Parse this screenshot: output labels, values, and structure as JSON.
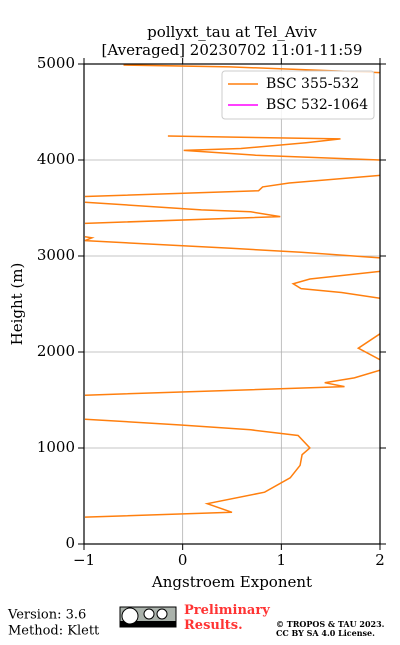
{
  "chart_data": {
    "type": "line",
    "title": "pollyxt_tau at Tel_Aviv",
    "subtitle": "[Averaged] 20230702 11:01-11:59",
    "x_label": "Angstroem Exponent",
    "y_label": "Height (m)",
    "xlim": [
      -1,
      2
    ],
    "xticks": [
      {
        "value": -1,
        "label": "−1"
      },
      0,
      1,
      2
    ],
    "ylim": [
      0,
      5000
    ],
    "yticks": [
      0,
      1000,
      2000,
      3000,
      4000,
      5000
    ],
    "grid": true,
    "legend": "upper right",
    "series": [
      {
        "name": "BSC 355-532",
        "color": "#ff7f0e",
        "x": [
          -0.99,
          0.5,
          0.25,
          0.83,
          1.09,
          1.19,
          1.21,
          1.29,
          1.17,
          0.69,
          -0.02,
          -0.99,
          null,
          -0.99,
          1.64,
          1.44,
          1.74,
          2.0,
          null,
          2.0,
          1.78,
          2.0,
          null,
          2.0,
          1.61,
          1.2,
          1.12,
          1.29,
          2.0,
          null,
          2.0,
          1.2,
          0.49,
          -0.99,
          -0.92,
          -0.99,
          null,
          -0.99,
          0.99,
          0.69,
          0.19,
          -0.99,
          null,
          -0.99,
          0.77,
          0.81,
          1.08,
          2.0,
          null,
          2.0,
          0.74,
          0.01,
          0.59,
          1.25,
          1.6,
          -0.15,
          null,
          -0.6,
          0.48,
          2.0
        ],
        "y": [
          280,
          330,
          420,
          540,
          690,
          820,
          930,
          1000,
          1130,
          1190,
          1240,
          1300,
          null,
          1550,
          1640,
          1680,
          1730,
          1810,
          null,
          1920,
          2040,
          2190,
          null,
          2560,
          2620,
          2660,
          2710,
          2760,
          2840,
          null,
          2980,
          3040,
          3080,
          3160,
          3190,
          3200,
          null,
          3340,
          3410,
          3460,
          3480,
          3560,
          null,
          3620,
          3680,
          3720,
          3760,
          3840,
          null,
          4000,
          4050,
          4100,
          4120,
          4180,
          4220,
          4250,
          null,
          4990,
          4970,
          4910
        ]
      },
      {
        "name": "BSC 532-1064",
        "color": "#ff00ff",
        "x": [],
        "y": []
      }
    ]
  },
  "footer": {
    "version": "Version: 3.6",
    "method": "Method: Klett",
    "preliminary": "Preliminary Results.",
    "copyright": "© TROPOS & TAU 2023.",
    "license": "CC BY SA 4.0 License."
  }
}
